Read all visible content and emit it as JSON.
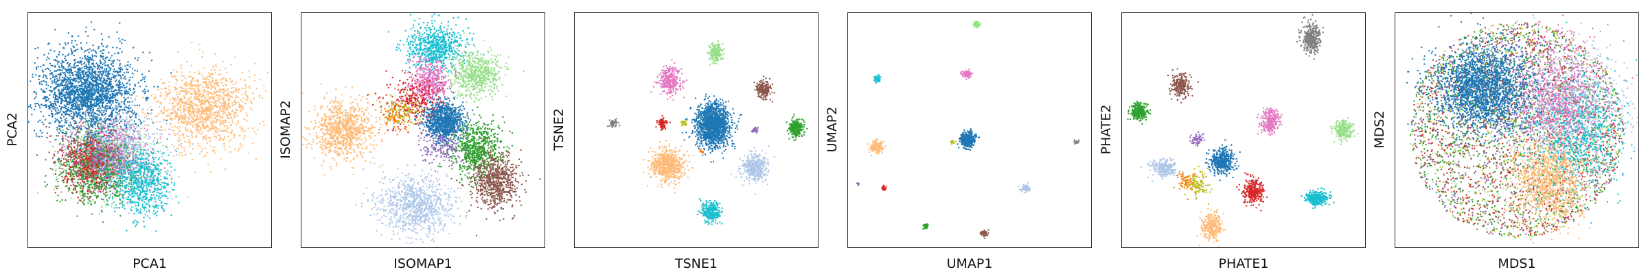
{
  "palette": {
    "blue": "#1f77b4",
    "light_blue": "#aec7e8",
    "orange": "#ff7f0e",
    "light_orange": "#ffbb78",
    "green": "#2ca02c",
    "light_green": "#98df8a",
    "red": "#d62728",
    "purple": "#9467bd",
    "brown": "#8c564b",
    "pink": "#e377c2",
    "gray": "#7f7f7f",
    "olive": "#bcbd22",
    "cyan": "#17becf"
  },
  "chart_data": [
    {
      "type": "scatter",
      "xlabel": "PCA1",
      "ylabel": "PCA2",
      "xlim": [
        0,
        100
      ],
      "ylim": [
        0,
        100
      ],
      "grid": false,
      "axis_ticks": "hidden",
      "series": [
        {
          "color": "#98df8a",
          "cx": 30,
          "cy": 38,
          "sx": 8,
          "sy": 8,
          "n": 700
        },
        {
          "color": "#8c564b",
          "cx": 25,
          "cy": 37,
          "sx": 6,
          "sy": 7,
          "n": 500
        },
        {
          "color": "#e377c2",
          "cx": 33,
          "cy": 40,
          "sx": 8,
          "sy": 7,
          "n": 600
        },
        {
          "color": "#aec7e8",
          "cx": 38,
          "cy": 42,
          "sx": 10,
          "sy": 9,
          "n": 700
        },
        {
          "color": "#2ca02c",
          "cx": 28,
          "cy": 33,
          "sx": 8,
          "sy": 7,
          "n": 600
        },
        {
          "color": "#d62728",
          "cx": 25,
          "cy": 36,
          "sx": 6,
          "sy": 6,
          "n": 300
        },
        {
          "color": "#9467bd",
          "cx": 33,
          "cy": 36,
          "sx": 6,
          "sy": 5,
          "n": 200
        },
        {
          "color": "#17becf",
          "cx": 47,
          "cy": 28,
          "sx": 6,
          "sy": 7,
          "n": 700
        },
        {
          "color": "#ffbb78",
          "cx": 72,
          "cy": 59,
          "sx": 10,
          "sy": 8,
          "n": 1200
        },
        {
          "color": "#1f77b4",
          "cx": 24,
          "cy": 66,
          "sx": 10,
          "sy": 9,
          "n": 2200
        }
      ]
    },
    {
      "type": "scatter",
      "xlabel": "ISOMAP1",
      "ylabel": "ISOMAP2",
      "xlim": [
        0,
        100
      ],
      "ylim": [
        0,
        100
      ],
      "grid": false,
      "axis_ticks": "hidden",
      "series": [
        {
          "color": "#ffbb78",
          "cx": 17,
          "cy": 50,
          "sx": 6,
          "sy": 6,
          "n": 900
        },
        {
          "color": "#aec7e8",
          "cx": 47,
          "cy": 18,
          "sx": 8,
          "sy": 6,
          "n": 900
        },
        {
          "color": "#17becf",
          "cx": 55,
          "cy": 85,
          "sx": 6,
          "sy": 5,
          "n": 700
        },
        {
          "color": "#e377c2",
          "cx": 53,
          "cy": 70,
          "sx": 4,
          "sy": 5,
          "n": 500
        },
        {
          "color": "#98df8a",
          "cx": 72,
          "cy": 74,
          "sx": 5,
          "sy": 5,
          "n": 600
        },
        {
          "color": "#2ca02c",
          "cx": 72,
          "cy": 42,
          "sx": 5,
          "sy": 6,
          "n": 700
        },
        {
          "color": "#8c564b",
          "cx": 80,
          "cy": 28,
          "sx": 5,
          "sy": 6,
          "n": 700
        },
        {
          "color": "#d62728",
          "cx": 47,
          "cy": 62,
          "sx": 6,
          "sy": 5,
          "n": 300
        },
        {
          "color": "#9467bd",
          "cx": 58,
          "cy": 45,
          "sx": 4,
          "sy": 5,
          "n": 250
        },
        {
          "color": "#bcbd22",
          "cx": 41,
          "cy": 58,
          "sx": 4,
          "sy": 3,
          "n": 120
        },
        {
          "color": "#ff7f0e",
          "cx": 38,
          "cy": 55,
          "sx": 3,
          "sy": 3,
          "n": 60
        },
        {
          "color": "#1f77b4",
          "cx": 59,
          "cy": 54,
          "sx": 4,
          "sy": 4,
          "n": 900
        }
      ]
    },
    {
      "type": "scatter",
      "xlabel": "TSNE1",
      "ylabel": "TSNE2",
      "xlim": [
        0,
        100
      ],
      "ylim": [
        0,
        100
      ],
      "grid": false,
      "axis_ticks": "hidden",
      "series": [
        {
          "color": "#98df8a",
          "cx": 58,
          "cy": 83,
          "sx": 1.4,
          "sy": 2,
          "n": 200
        },
        {
          "color": "#e377c2",
          "cx": 39,
          "cy": 71,
          "sx": 2.5,
          "sy": 3,
          "n": 300
        },
        {
          "color": "#8c564b",
          "cx": 78,
          "cy": 67,
          "sx": 1.5,
          "sy": 2,
          "n": 200
        },
        {
          "color": "#7f7f7f",
          "cx": 16,
          "cy": 53,
          "sx": 0.8,
          "sy": 0.8,
          "n": 60
        },
        {
          "color": "#d62728",
          "cx": 36,
          "cy": 53,
          "sx": 0.8,
          "sy": 1.2,
          "n": 80
        },
        {
          "color": "#bcbd22",
          "cx": 45,
          "cy": 53,
          "sx": 0.6,
          "sy": 0.6,
          "n": 30
        },
        {
          "color": "#1f77b4",
          "cx": 57,
          "cy": 52,
          "sx": 3.5,
          "sy": 4.5,
          "n": 1500
        },
        {
          "color": "#9467bd",
          "cx": 74,
          "cy": 50,
          "sx": 0.6,
          "sy": 0.8,
          "n": 30
        },
        {
          "color": "#2ca02c",
          "cx": 91,
          "cy": 51,
          "sx": 1.5,
          "sy": 2,
          "n": 250
        },
        {
          "color": "#ffbb78",
          "cx": 38,
          "cy": 35,
          "sx": 3.2,
          "sy": 3.5,
          "n": 700
        },
        {
          "color": "#ff7f0e",
          "cx": 52,
          "cy": 41,
          "sx": 0.4,
          "sy": 0.4,
          "n": 12
        },
        {
          "color": "#aec7e8",
          "cx": 74,
          "cy": 34,
          "sx": 2.5,
          "sy": 3,
          "n": 450
        },
        {
          "color": "#17becf",
          "cx": 56,
          "cy": 15,
          "sx": 1.8,
          "sy": 2.2,
          "n": 300
        }
      ]
    },
    {
      "type": "scatter",
      "xlabel": "UMAP1",
      "ylabel": "UMAP2",
      "xlim": [
        0,
        100
      ],
      "ylim": [
        0,
        100
      ],
      "grid": false,
      "axis_ticks": "hidden",
      "series": [
        {
          "color": "#98df8a",
          "cx": 53,
          "cy": 95,
          "sx": 0.7,
          "sy": 0.6,
          "n": 60
        },
        {
          "color": "#17becf",
          "cx": 12,
          "cy": 72,
          "sx": 0.7,
          "sy": 0.7,
          "n": 60
        },
        {
          "color": "#e377c2",
          "cx": 49,
          "cy": 74,
          "sx": 0.9,
          "sy": 0.8,
          "n": 100
        },
        {
          "color": "#ffbb78",
          "cx": 12,
          "cy": 43,
          "sx": 1.2,
          "sy": 1.2,
          "n": 150
        },
        {
          "color": "#1f77b4",
          "cx": 49,
          "cy": 46,
          "sx": 1.5,
          "sy": 1.6,
          "n": 400
        },
        {
          "color": "#bcbd22",
          "cx": 43,
          "cy": 45,
          "sx": 0.5,
          "sy": 0.4,
          "n": 20
        },
        {
          "color": "#7f7f7f",
          "cx": 94,
          "cy": 45,
          "sx": 0.5,
          "sy": 0.5,
          "n": 20
        },
        {
          "color": "#9467bd",
          "cx": 4,
          "cy": 27,
          "sx": 0.3,
          "sy": 0.3,
          "n": 10
        },
        {
          "color": "#d62728",
          "cx": 15,
          "cy": 25,
          "sx": 0.4,
          "sy": 0.5,
          "n": 20
        },
        {
          "color": "#aec7e8",
          "cx": 73,
          "cy": 25,
          "sx": 0.9,
          "sy": 0.8,
          "n": 80
        },
        {
          "color": "#2ca02c",
          "cx": 32,
          "cy": 9,
          "sx": 0.6,
          "sy": 0.6,
          "n": 40
        },
        {
          "color": "#8c564b",
          "cx": 56,
          "cy": 6,
          "sx": 0.8,
          "sy": 0.6,
          "n": 50
        }
      ]
    },
    {
      "type": "scatter",
      "xlabel": "PHATE1",
      "ylabel": "PHATE2",
      "xlim": [
        0,
        100
      ],
      "ylim": [
        0,
        100
      ],
      "grid": false,
      "axis_ticks": "hidden",
      "series": [
        {
          "color": "#7f7f7f",
          "cx": 78,
          "cy": 89,
          "sx": 2,
          "sy": 3,
          "n": 350
        },
        {
          "color": "#8c564b",
          "cx": 24,
          "cy": 69,
          "sx": 1.8,
          "sy": 2.5,
          "n": 250
        },
        {
          "color": "#2ca02c",
          "cx": 7,
          "cy": 58,
          "sx": 1.8,
          "sy": 1.8,
          "n": 250
        },
        {
          "color": "#e377c2",
          "cx": 61,
          "cy": 54,
          "sx": 2,
          "sy": 2.5,
          "n": 250
        },
        {
          "color": "#98df8a",
          "cx": 91,
          "cy": 50,
          "sx": 2,
          "sy": 2,
          "n": 250
        },
        {
          "color": "#9467bd",
          "cx": 31,
          "cy": 46,
          "sx": 1.2,
          "sy": 1.2,
          "n": 60
        },
        {
          "color": "#1f77b4",
          "cx": 41,
          "cy": 37,
          "sx": 2.5,
          "sy": 2.5,
          "n": 450
        },
        {
          "color": "#aec7e8",
          "cx": 17,
          "cy": 34,
          "sx": 2.5,
          "sy": 2,
          "n": 250
        },
        {
          "color": "#bcbd22",
          "cx": 31,
          "cy": 27,
          "sx": 2.5,
          "sy": 2.5,
          "n": 120
        },
        {
          "color": "#ff7f0e",
          "cx": 26,
          "cy": 28,
          "sx": 2,
          "sy": 2,
          "n": 60
        },
        {
          "color": "#d62728",
          "cx": 54,
          "cy": 24,
          "sx": 2.2,
          "sy": 2.5,
          "n": 300
        },
        {
          "color": "#17becf",
          "cx": 80,
          "cy": 21,
          "sx": 2.2,
          "sy": 1.5,
          "n": 300
        },
        {
          "color": "#ffbb78",
          "cx": 37,
          "cy": 9,
          "sx": 2,
          "sy": 3,
          "n": 300
        }
      ]
    },
    {
      "type": "scatter",
      "xlabel": "MDS1",
      "ylabel": "MDS2",
      "xlim": [
        0,
        100
      ],
      "ylim": [
        0,
        100
      ],
      "grid": false,
      "axis_ticks": "hidden",
      "series": [
        {
          "color": "#2ca02c",
          "cx": 50,
          "cy": 50,
          "sx": 20,
          "sy": 20,
          "n": 900,
          "disk": [
            50,
            50,
            44,
            46
          ]
        },
        {
          "color": "#98df8a",
          "cx": 50,
          "cy": 50,
          "sx": 20,
          "sy": 20,
          "n": 700,
          "disk": [
            50,
            50,
            44,
            46
          ]
        },
        {
          "color": "#8c564b",
          "cx": 50,
          "cy": 50,
          "sx": 20,
          "sy": 20,
          "n": 700,
          "disk": [
            50,
            50,
            44,
            46
          ]
        },
        {
          "color": "#d62728",
          "cx": 50,
          "cy": 50,
          "sx": 20,
          "sy": 20,
          "n": 700,
          "disk": [
            50,
            50,
            44,
            46
          ]
        },
        {
          "color": "#9467bd",
          "cx": 50,
          "cy": 50,
          "sx": 20,
          "sy": 20,
          "n": 500,
          "disk": [
            50,
            50,
            44,
            46
          ]
        },
        {
          "color": "#bcbd22",
          "cx": 50,
          "cy": 50,
          "sx": 20,
          "sy": 20,
          "n": 400,
          "disk": [
            50,
            50,
            44,
            46
          ]
        },
        {
          "color": "#aec7e8",
          "cx": 72,
          "cy": 60,
          "sx": 12,
          "sy": 14,
          "n": 900
        },
        {
          "color": "#17becf",
          "cx": 75,
          "cy": 48,
          "sx": 10,
          "sy": 12,
          "n": 800
        },
        {
          "color": "#e377c2",
          "cx": 66,
          "cy": 65,
          "sx": 10,
          "sy": 12,
          "n": 800
        },
        {
          "color": "#ffbb78",
          "cx": 63,
          "cy": 28,
          "sx": 7,
          "sy": 9,
          "n": 1000
        },
        {
          "color": "#1f77b4",
          "cx": 36,
          "cy": 68,
          "sx": 10,
          "sy": 9,
          "n": 2200
        }
      ]
    }
  ]
}
